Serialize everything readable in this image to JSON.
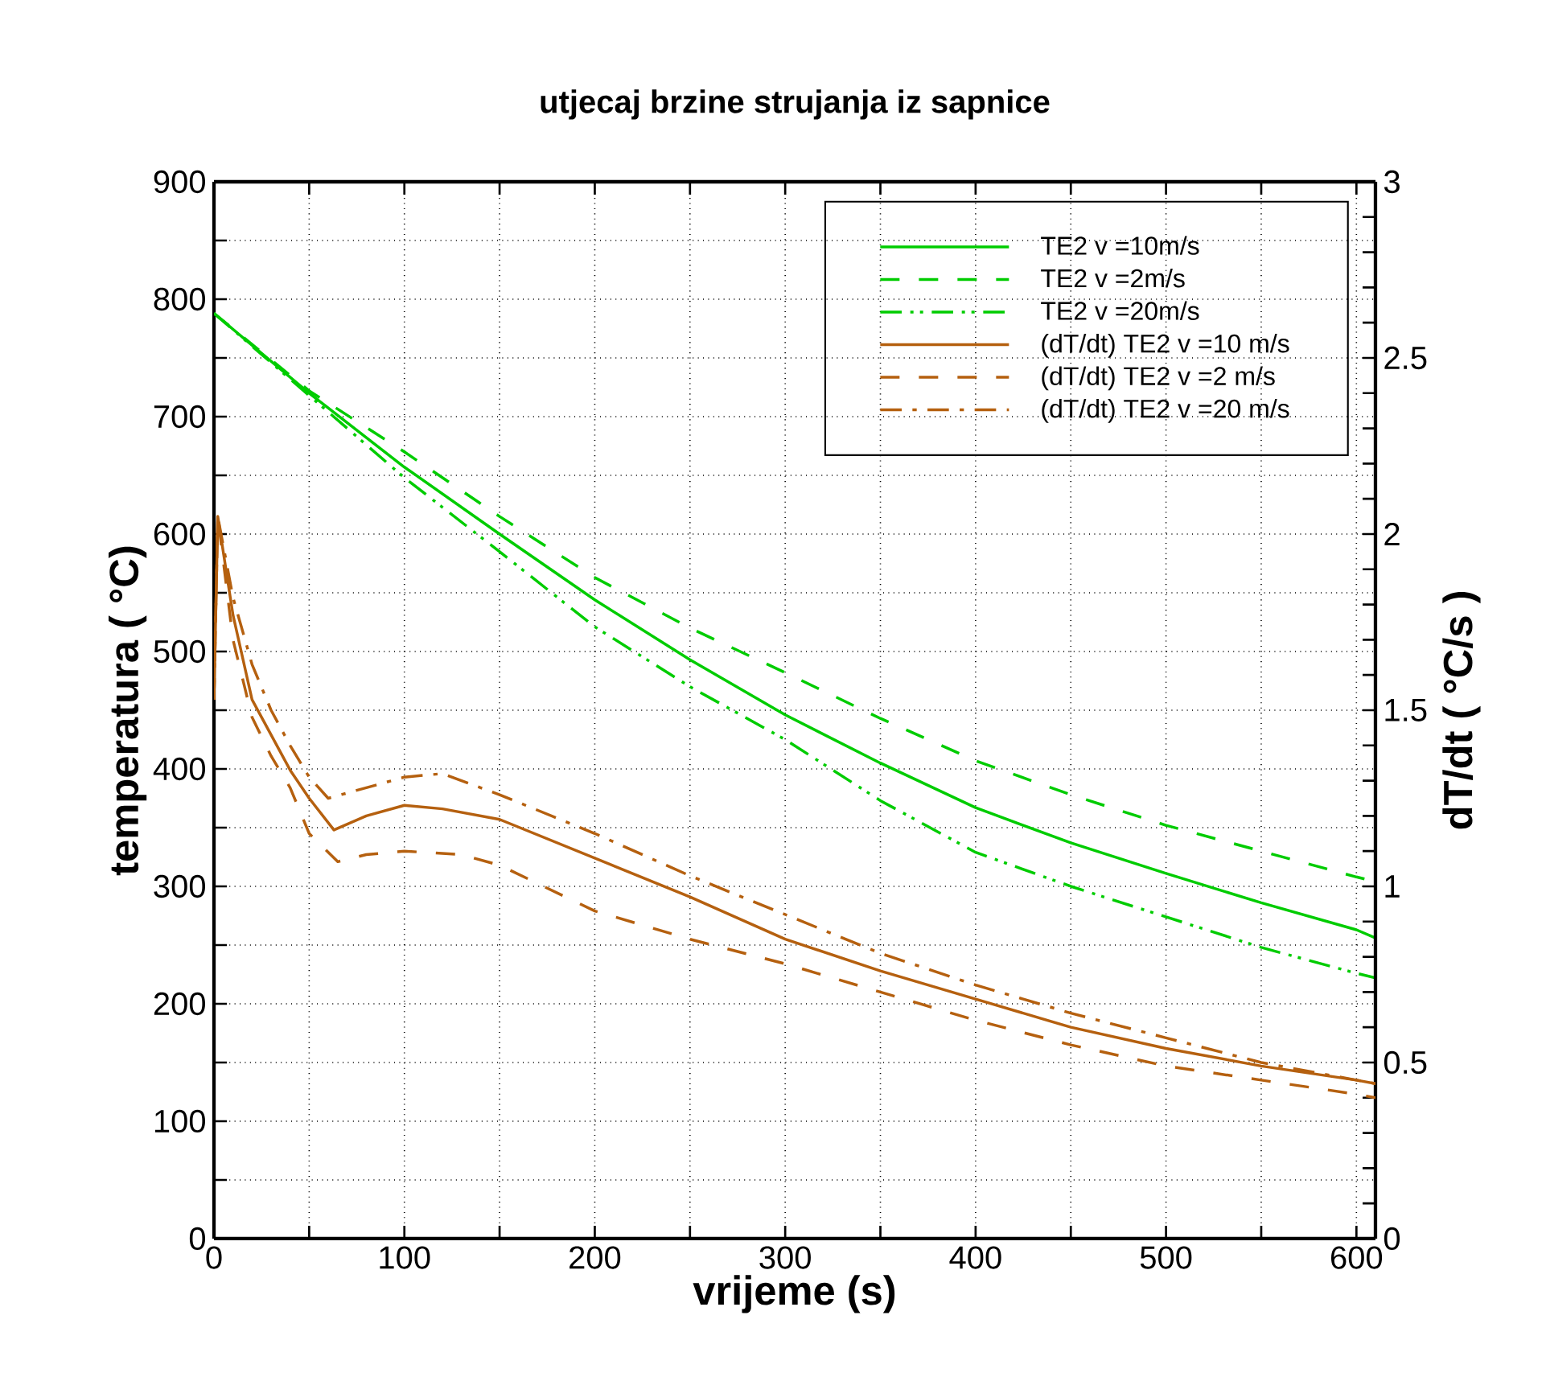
{
  "chart_data": {
    "type": "line",
    "title": "utjecaj brzine strujanja iz sapnice",
    "xlabel": "vrijeme (s)",
    "ylabel": "temperatura ( °C)",
    "y2label": "dT/dt ( °C/s )",
    "series": [
      {
        "name": "TE2 v =10m/s",
        "color": "#00cc00",
        "line_style": "solid",
        "x": [
          0,
          50,
          100,
          150,
          200,
          250,
          300,
          350,
          400,
          450,
          500,
          550,
          600,
          610
        ],
        "values": [
          788,
          720,
          657,
          600,
          544,
          493,
          446,
          405,
          367,
          337,
          311,
          286,
          263,
          256
        ]
      },
      {
        "name": "TE2 v =2m/s",
        "color": "#00cc00",
        "line_style": "dashed",
        "x": [
          0,
          50,
          100,
          150,
          200,
          250,
          300,
          350,
          400,
          450,
          500,
          550,
          600,
          610
        ],
        "values": [
          788,
          722,
          670,
          615,
          563,
          520,
          482,
          443,
          407,
          378,
          352,
          330,
          308,
          304
        ]
      },
      {
        "name": "TE2 v =20m/s",
        "color": "#00cc00",
        "line_style": "dashdotdot",
        "x": [
          0,
          50,
          100,
          150,
          200,
          250,
          300,
          350,
          400,
          450,
          500,
          550,
          600,
          610
        ],
        "values": [
          788,
          718,
          648,
          585,
          521,
          470,
          425,
          373,
          329,
          300,
          274,
          248,
          226,
          222
        ]
      },
      {
        "name": "(dT/dt) TE2 v =10 m/s",
        "color": "#b5600f",
        "line_style": "solid",
        "axis": "y2",
        "x": [
          0,
          2,
          10,
          20,
          30,
          40,
          50,
          63,
          80,
          100,
          120,
          150,
          200,
          250,
          300,
          350,
          400,
          450,
          500,
          550,
          600,
          610
        ],
        "values": [
          1.53,
          2.05,
          1.77,
          1.53,
          1.43,
          1.33,
          1.25,
          1.16,
          1.2,
          1.23,
          1.22,
          1.19,
          1.08,
          0.97,
          0.85,
          0.76,
          0.68,
          0.6,
          0.54,
          0.49,
          0.45,
          0.44
        ]
      },
      {
        "name": "(dT/dt) TE2 v =2 m/s",
        "color": "#b5600f",
        "line_style": "dashed",
        "axis": "y2",
        "x": [
          0,
          2,
          10,
          20,
          30,
          40,
          50,
          65,
          80,
          100,
          130,
          150,
          200,
          250,
          300,
          350,
          400,
          450,
          500,
          550,
          600,
          610
        ],
        "values": [
          1.53,
          2.05,
          1.7,
          1.48,
          1.37,
          1.28,
          1.15,
          1.07,
          1.09,
          1.1,
          1.09,
          1.06,
          0.93,
          0.85,
          0.78,
          0.7,
          0.62,
          0.55,
          0.49,
          0.45,
          0.41,
          0.4
        ]
      },
      {
        "name": "(dT/dt) TE2 v =20 m/s",
        "color": "#b5600f",
        "line_style": "dashdot",
        "axis": "y2",
        "x": [
          0,
          2,
          10,
          20,
          30,
          40,
          50,
          60,
          80,
          100,
          120,
          150,
          200,
          250,
          300,
          350,
          400,
          450,
          500,
          550,
          600,
          610
        ],
        "values": [
          1.53,
          2.05,
          1.82,
          1.63,
          1.5,
          1.4,
          1.31,
          1.25,
          1.28,
          1.31,
          1.32,
          1.26,
          1.15,
          1.03,
          0.92,
          0.81,
          0.72,
          0.64,
          0.57,
          0.5,
          0.45,
          0.44
        ]
      }
    ],
    "xlim": [
      0,
      610
    ],
    "ylim": [
      0,
      900
    ],
    "y2lim": [
      0,
      3
    ],
    "xticks": [
      0,
      {
        "value": 50,
        "label": null
      },
      100,
      {
        "value": 150,
        "label": null
      },
      200,
      {
        "value": 250,
        "label": null
      },
      300,
      {
        "value": 350,
        "label": null
      },
      400,
      {
        "value": 450,
        "label": null
      },
      500,
      {
        "value": 550,
        "label": null
      },
      600
    ],
    "yticks": [
      0,
      {
        "value": 50,
        "label": null
      },
      100,
      {
        "value": 150,
        "label": null
      },
      200,
      {
        "value": 250,
        "label": null
      },
      300,
      {
        "value": 350,
        "label": null
      },
      400,
      {
        "value": 450,
        "label": null
      },
      500,
      {
        "value": 550,
        "label": null
      },
      600,
      {
        "value": 650,
        "label": null
      },
      700,
      {
        "value": 750,
        "label": null
      },
      800,
      {
        "value": 850,
        "label": null
      },
      900
    ],
    "y2ticks": [
      0,
      {
        "value": 0.1,
        "label": null
      },
      {
        "value": 0.2,
        "label": null
      },
      {
        "value": 0.3,
        "label": null
      },
      {
        "value": 0.4,
        "label": null
      },
      0.5,
      {
        "value": 0.6,
        "label": null
      },
      {
        "value": 0.7,
        "label": null
      },
      {
        "value": 0.8,
        "label": null
      },
      {
        "value": 0.9,
        "label": null
      },
      1,
      {
        "value": 1.1,
        "label": null
      },
      {
        "value": 1.2,
        "label": null
      },
      {
        "value": 1.3,
        "label": null
      },
      {
        "value": 1.4,
        "label": null
      },
      1.5,
      {
        "value": 1.6,
        "label": null
      },
      {
        "value": 1.7,
        "label": null
      },
      {
        "value": 1.8,
        "label": null
      },
      {
        "value": 1.9,
        "label": null
      },
      2,
      {
        "value": 2.1,
        "label": null
      },
      {
        "value": 2.2,
        "label": null
      },
      {
        "value": 2.3,
        "label": null
      },
      {
        "value": 2.4,
        "label": null
      },
      2.5,
      {
        "value": 2.6,
        "label": null
      },
      {
        "value": 2.7,
        "label": null
      },
      {
        "value": 2.8,
        "label": null
      },
      {
        "value": 2.9,
        "label": null
      },
      3
    ],
    "grid": true,
    "legend": "top right"
  }
}
